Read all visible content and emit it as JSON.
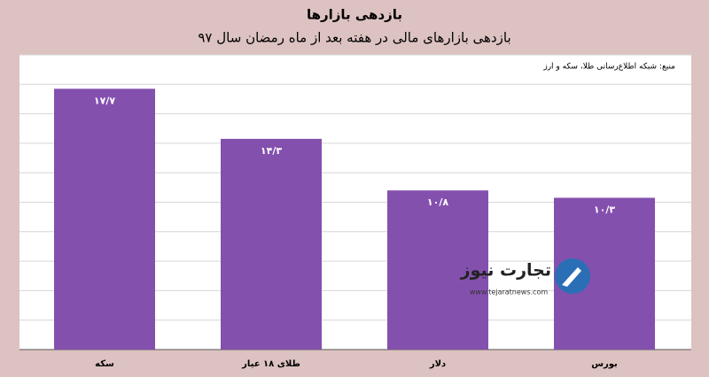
{
  "chart_data": {
    "type": "bar",
    "title": "بازدهی بازارها",
    "subtitle": "بازدهی بازارهای مالی در هفته بعد از ماه رمضان سال ۹۷",
    "source": "منبع: شبکه اطلاع‌رسانی طلا، سکه و ارز",
    "categories": [
      "سکه",
      "طلای ۱۸ عیار",
      "دلار",
      "بورس"
    ],
    "values": [
      17.7,
      14.3,
      10.8,
      10.3
    ],
    "value_labels": [
      "۱۷/۷",
      "۱۴/۳",
      "۱۰/۸",
      "۱۰/۳"
    ],
    "color": "#8450ae",
    "ylim": [
      0,
      20
    ],
    "yticks": [
      0,
      2,
      4,
      6,
      8,
      10,
      12,
      14,
      16,
      18,
      20
    ],
    "grid": true
  },
  "logo": {
    "name": "تجارت نیوز",
    "url": "www.tejaratnews.com"
  }
}
